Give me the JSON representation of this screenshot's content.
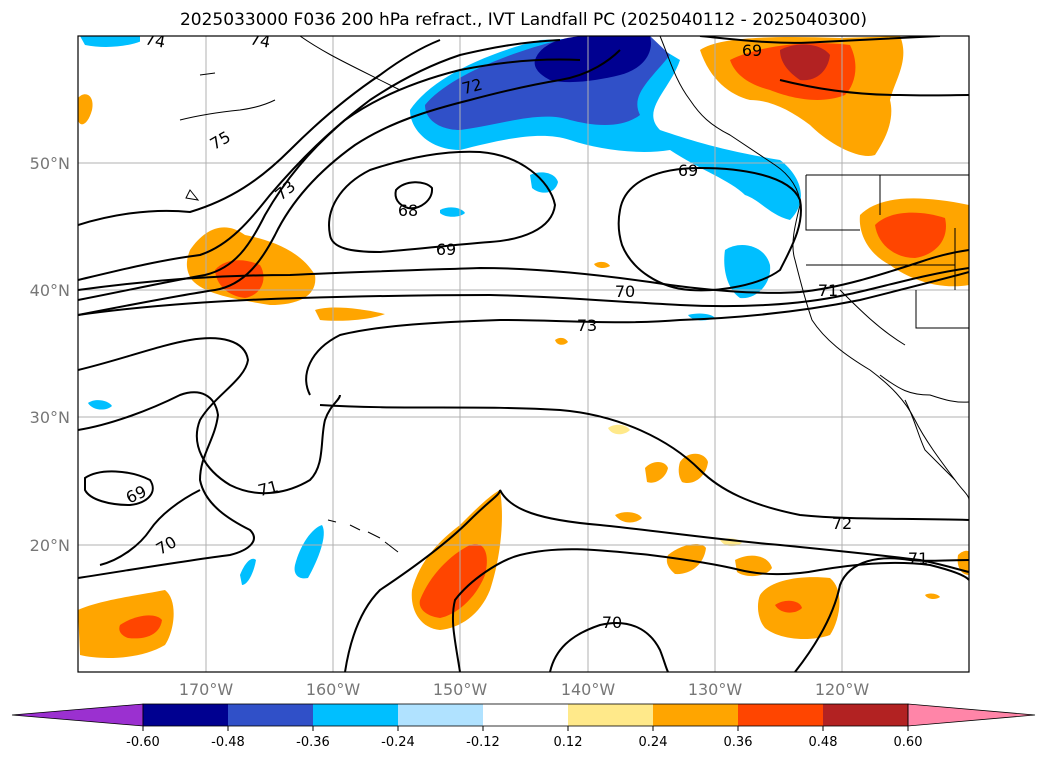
{
  "title": "2025033000 F036 200 hPa refract., IVT Landfall PC (2025040112 - 2025040300)",
  "lat_labels": [
    "50°N",
    "40°N",
    "30°N",
    "20°N"
  ],
  "lon_labels": [
    "170°W",
    "160°W",
    "150°W",
    "140°W",
    "130°W",
    "120°W"
  ],
  "colorbar": {
    "colors": [
      "#9b30d0",
      "#000090",
      "#3050c8",
      "#00bfff",
      "#b0e2ff",
      "#ffffff",
      "#ffe98a",
      "#ffa500",
      "#ff4500",
      "#b22222",
      "#ff85a8"
    ],
    "tick_labels": [
      "-0.60",
      "-0.48",
      "-0.36",
      "-0.24",
      "-0.12",
      "0.12",
      "0.24",
      "0.36",
      "0.48",
      "0.60"
    ]
  },
  "contour_labels": [
    "74",
    "74",
    "75",
    "73",
    "72",
    "69",
    "69",
    "68",
    "69",
    "70",
    "71",
    "73",
    "69",
    "70",
    "71",
    "72",
    "71",
    "70"
  ]
}
